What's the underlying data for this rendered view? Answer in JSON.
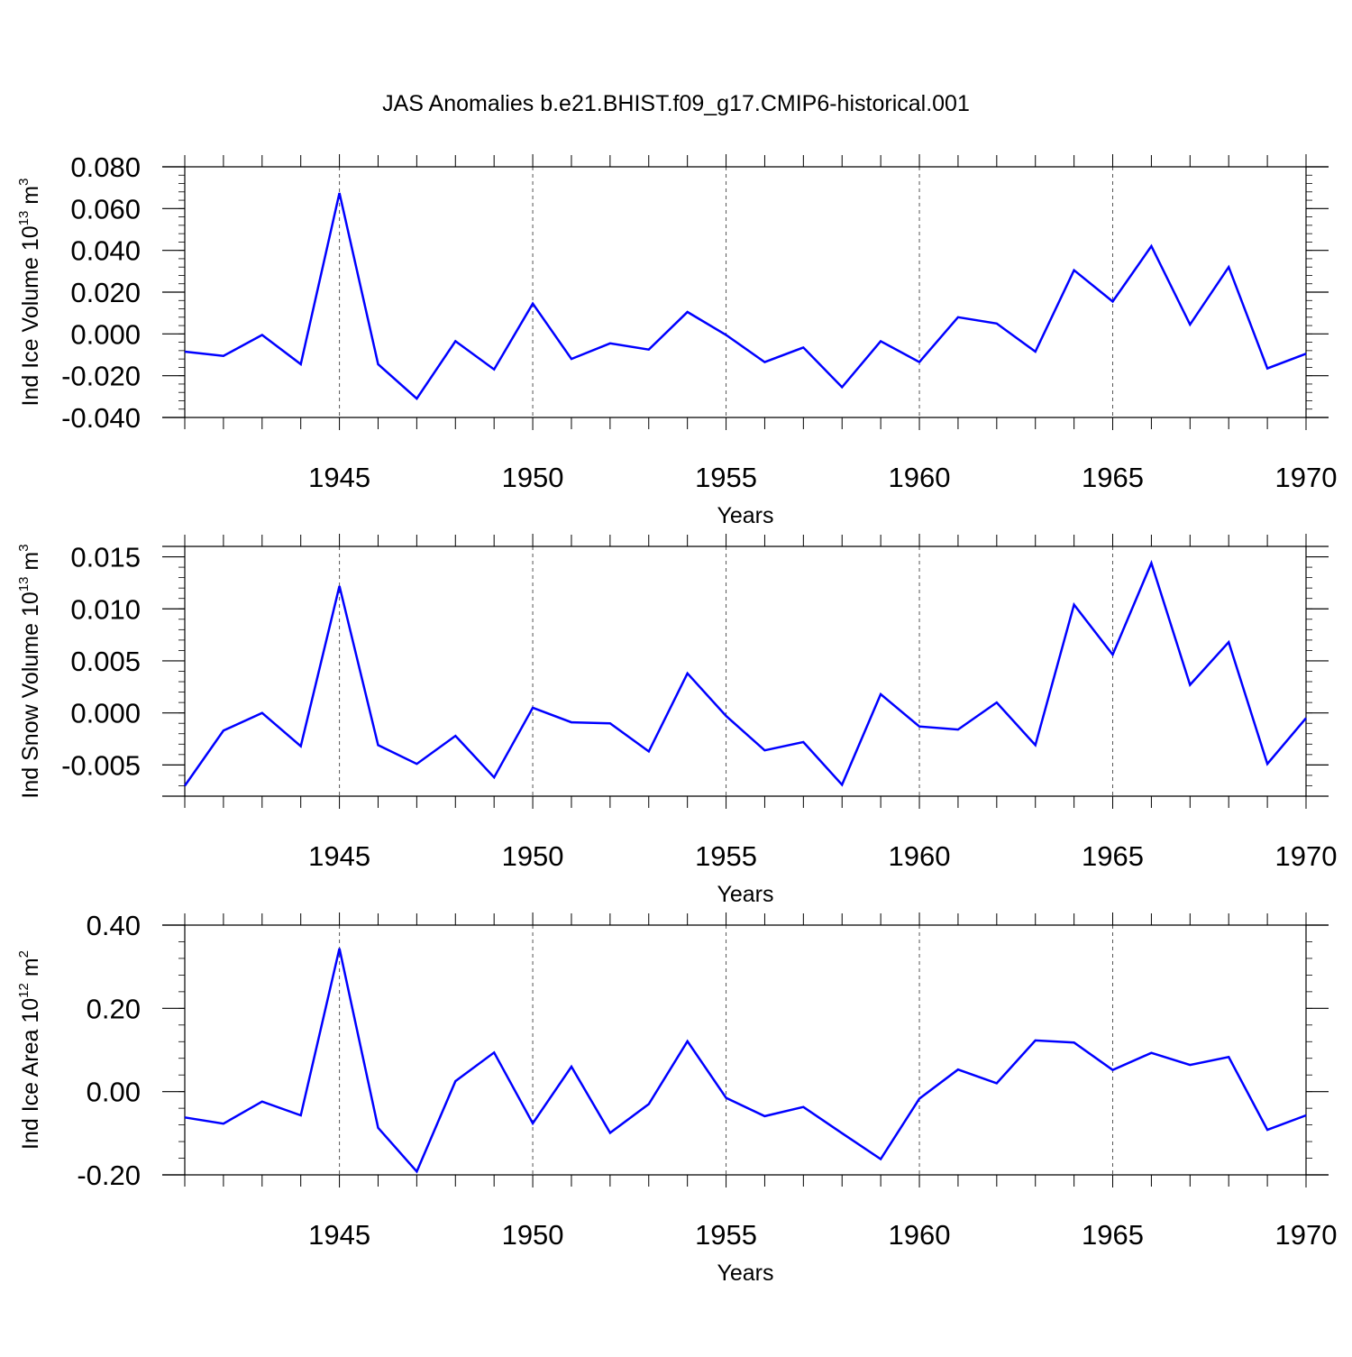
{
  "title": "JAS Anomalies b.e21.BHIST.f09_g17.CMIP6-historical.001",
  "line_color": "#0000ff",
  "chart_data": [
    {
      "type": "line",
      "ylabel_main": "Ind Ice Volume 10",
      "ylabel_exp": "13",
      "ylabel_unit": " m",
      "ylabel_unit_exp": "3",
      "xlabel": "Years",
      "xlim": [
        1941,
        1970
      ],
      "ylim": [
        -0.04,
        0.08
      ],
      "y_major_ticks": [
        0.08,
        0.06,
        0.04,
        0.02,
        0.0,
        -0.02,
        -0.04
      ],
      "y_tick_labels": [
        "0.080",
        "0.060",
        "0.040",
        "0.020",
        "0.000",
        "-0.020",
        "-0.040"
      ],
      "y_minor_step": 0.004,
      "x_ticks": [
        1945,
        1950,
        1955,
        1960,
        1965,
        1970
      ],
      "x_tick_labels": [
        "1945",
        "1950",
        "1955",
        "1960",
        "1965",
        "1970"
      ],
      "x": [
        1941,
        1942,
        1943,
        1944,
        1945,
        1946,
        1947,
        1948,
        1949,
        1950,
        1951,
        1952,
        1953,
        1954,
        1955,
        1956,
        1957,
        1958,
        1959,
        1960,
        1961,
        1962,
        1963,
        1964,
        1965,
        1966,
        1967,
        1968,
        1969,
        1970
      ],
      "values": [
        -0.0085,
        -0.0105,
        -0.0005,
        -0.0145,
        0.0675,
        -0.0145,
        -0.031,
        -0.0035,
        -0.017,
        0.0145,
        -0.012,
        -0.0045,
        -0.0075,
        0.0105,
        -0.0005,
        -0.0135,
        -0.0065,
        -0.0255,
        -0.0035,
        -0.0135,
        0.008,
        0.005,
        -0.0085,
        0.0305,
        0.0155,
        0.042,
        0.0045,
        0.032,
        -0.0165,
        -0.0095
      ]
    },
    {
      "type": "line",
      "ylabel_main": "Ind Snow Volume 10",
      "ylabel_exp": "13",
      "ylabel_unit": " m",
      "ylabel_unit_exp": "3",
      "xlabel": "Years",
      "xlim": [
        1941,
        1970
      ],
      "ylim": [
        -0.008,
        0.016
      ],
      "y_major_ticks": [
        0.015,
        0.01,
        0.005,
        0.0,
        -0.005
      ],
      "y_tick_labels": [
        "0.015",
        "0.010",
        "0.005",
        "0.000",
        "-0.005"
      ],
      "y_minor_step": 0.001,
      "x_ticks": [
        1945,
        1950,
        1955,
        1960,
        1965,
        1970
      ],
      "x_tick_labels": [
        "1945",
        "1950",
        "1955",
        "1960",
        "1965",
        "1970"
      ],
      "x": [
        1941,
        1942,
        1943,
        1944,
        1945,
        1946,
        1947,
        1948,
        1949,
        1950,
        1951,
        1952,
        1953,
        1954,
        1955,
        1956,
        1957,
        1958,
        1959,
        1960,
        1961,
        1962,
        1963,
        1964,
        1965,
        1966,
        1967,
        1968,
        1969,
        1970
      ],
      "values": [
        -0.007,
        -0.0017,
        0.0,
        -0.0032,
        0.0122,
        -0.0031,
        -0.0049,
        -0.0022,
        -0.0062,
        0.0005,
        -0.0009,
        -0.001,
        -0.0037,
        0.0038,
        -0.0003,
        -0.0036,
        -0.0028,
        -0.0069,
        0.0018,
        -0.0013,
        -0.0016,
        0.001,
        -0.0031,
        0.0104,
        0.0056,
        0.0144,
        0.0027,
        0.0068,
        -0.0049,
        -0.0005
      ]
    },
    {
      "type": "line",
      "ylabel_main": "Ind Ice Area 10",
      "ylabel_exp": "12",
      "ylabel_unit": " m",
      "ylabel_unit_exp": "2",
      "xlabel": "Years",
      "xlim": [
        1941,
        1970
      ],
      "ylim": [
        -0.2,
        0.4
      ],
      "y_major_ticks": [
        0.4,
        0.2,
        0.0,
        -0.2
      ],
      "y_tick_labels": [
        "0.40",
        "0.20",
        "0.00",
        "-0.20"
      ],
      "y_minor_step": 0.04,
      "x_ticks": [
        1945,
        1950,
        1955,
        1960,
        1965,
        1970
      ],
      "x_tick_labels": [
        "1945",
        "1950",
        "1955",
        "1960",
        "1965",
        "1970"
      ],
      "x": [
        1941,
        1942,
        1943,
        1944,
        1945,
        1946,
        1947,
        1948,
        1949,
        1950,
        1951,
        1952,
        1953,
        1954,
        1955,
        1956,
        1957,
        1958,
        1959,
        1960,
        1961,
        1962,
        1963,
        1964,
        1965,
        1966,
        1967,
        1968,
        1969,
        1970
      ],
      "values": [
        -0.062,
        -0.077,
        -0.024,
        -0.057,
        0.344,
        -0.087,
        -0.192,
        0.025,
        0.094,
        -0.076,
        0.06,
        -0.099,
        -0.03,
        0.121,
        -0.015,
        -0.059,
        -0.037,
        -0.1,
        -0.162,
        -0.017,
        0.053,
        0.02,
        0.123,
        0.118,
        0.052,
        0.093,
        0.064,
        0.083,
        -0.092,
        -0.057
      ]
    }
  ]
}
